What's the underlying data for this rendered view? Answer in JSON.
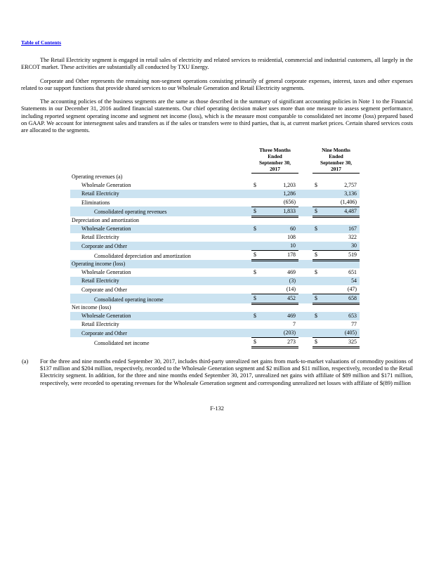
{
  "page": {
    "toc_link_label": "Table of Contents",
    "page_number": "F-132"
  },
  "paragraphs": {
    "p1": "The Retail Electricity segment is engaged in retail sales of electricity and related services to residential, commercial and industrial customers, all largely in the ERCOT market. These activities are substantially all conducted by TXU Energy.",
    "p2": "Corporate and Other represents the remaining non-segment operations consisting primarily of general corporate expenses, interest, taxes and other expenses related to our support functions that provide shared services to our Wholesale Generation and Retail Electricity segments.",
    "p3": "The accounting policies of the business segments are the same as those described in the summary of significant accounting policies in Note 1 to the Financial Statements in our December 31, 2016 audited financial statements. Our chief operating decision maker uses more than one measure to assess segment performance, including reported segment operating income and segment net income (loss), which is the measure most comparable to consolidated net income (loss) prepared based on GAAP. We account for intersegment sales and transfers as if the sales or transfers were to third parties, that is, at current market prices. Certain shared services costs are allocated to the segments."
  },
  "table": {
    "col_headers": {
      "three_months": "Three Months\nEnded\nSeptember 30,\n2017",
      "nine_months": "Nine Months\nEnded\nSeptember 30,\n2017"
    },
    "rows": [
      {
        "label": "Operating revenues (a)",
        "indent": 0,
        "d1": "",
        "v1": "",
        "d2": "",
        "v2": "",
        "shaded": false,
        "total": false
      },
      {
        "label": "Wholesale Generation",
        "indent": 1,
        "d1": "$",
        "v1": "1,203",
        "d2": "$",
        "v2": "2,757",
        "shaded": false,
        "total": false
      },
      {
        "label": "Retail Electricity",
        "indent": 1,
        "d1": "",
        "v1": "1,286",
        "d2": "",
        "v2": "3,136",
        "shaded": true,
        "total": false
      },
      {
        "label": "Eliminations",
        "indent": 1,
        "d1": "",
        "v1": "(656)",
        "d2": "",
        "v2": "(1,406)",
        "shaded": false,
        "total": false
      },
      {
        "label": "Consolidated operating revenues",
        "indent": 2,
        "d1": "$",
        "v1": "1,833",
        "d2": "$",
        "v2": "4,487",
        "shaded": true,
        "total": true
      },
      {
        "label": "Depreciation and amortization",
        "indent": 0,
        "d1": "",
        "v1": "",
        "d2": "",
        "v2": "",
        "shaded": false,
        "total": false
      },
      {
        "label": "Wholesale Generation",
        "indent": 1,
        "d1": "$",
        "v1": "60",
        "d2": "$",
        "v2": "167",
        "shaded": true,
        "total": false
      },
      {
        "label": "Retail Electricity",
        "indent": 1,
        "d1": "",
        "v1": "108",
        "d2": "",
        "v2": "322",
        "shaded": false,
        "total": false
      },
      {
        "label": "Corporate and Other",
        "indent": 1,
        "d1": "",
        "v1": "10",
        "d2": "",
        "v2": "30",
        "shaded": true,
        "total": false
      },
      {
        "label": "Consolidated depreciation and amortization",
        "indent": 2,
        "d1": "$",
        "v1": "178",
        "d2": "$",
        "v2": "519",
        "shaded": false,
        "total": true
      },
      {
        "label": "Operating income (loss)",
        "indent": 0,
        "d1": "",
        "v1": "",
        "d2": "",
        "v2": "",
        "shaded": true,
        "total": false
      },
      {
        "label": "Wholesale Generation",
        "indent": 1,
        "d1": "$",
        "v1": "469",
        "d2": "$",
        "v2": "651",
        "shaded": false,
        "total": false
      },
      {
        "label": "Retail Electricity",
        "indent": 1,
        "d1": "",
        "v1": "(3)",
        "d2": "",
        "v2": "54",
        "shaded": true,
        "total": false
      },
      {
        "label": "Corporate and Other",
        "indent": 1,
        "d1": "",
        "v1": "(14)",
        "d2": "",
        "v2": "(47)",
        "shaded": false,
        "total": false
      },
      {
        "label": "Consolidated operating income",
        "indent": 2,
        "d1": "$",
        "v1": "452",
        "d2": "$",
        "v2": "658",
        "shaded": true,
        "total": true
      },
      {
        "label": "Net income (loss)",
        "indent": 0,
        "d1": "",
        "v1": "",
        "d2": "",
        "v2": "",
        "shaded": false,
        "total": false
      },
      {
        "label": "Wholesale Generation",
        "indent": 1,
        "d1": "$",
        "v1": "469",
        "d2": "$",
        "v2": "653",
        "shaded": true,
        "total": false
      },
      {
        "label": "Retail Electricity",
        "indent": 1,
        "d1": "",
        "v1": "7",
        "d2": "",
        "v2": "77",
        "shaded": false,
        "total": false
      },
      {
        "label": "Corporate and Other",
        "indent": 1,
        "d1": "",
        "v1": "(203)",
        "d2": "",
        "v2": "(405)",
        "shaded": true,
        "total": false
      },
      {
        "label": "Consolidated net income",
        "indent": 2,
        "d1": "$",
        "v1": "273",
        "d2": "$",
        "v2": "325",
        "shaded": false,
        "total": true
      }
    ]
  },
  "footnote": {
    "marker": "(a)",
    "text": "For the three and nine months ended September 30, 2017, includes third-party unrealized net gains from mark-to-market valuations of commodity positions of $137 million and $204 million, respectively, recorded to the Wholesale Generation segment and $2 million and $11 million, respectively, recorded to the Retail Electricity segment. In addition, for the three and nine months ended September 30, 2017, unrealized net gains with affiliate of $89 million and $171 million, respectively, were recorded to operating revenues for the Wholesale Generation segment and corresponding unrealized net losses with affiliate of $(89) million"
  },
  "colors": {
    "row_shade": "#cbe3f1",
    "link_blue": "#0000ee"
  }
}
